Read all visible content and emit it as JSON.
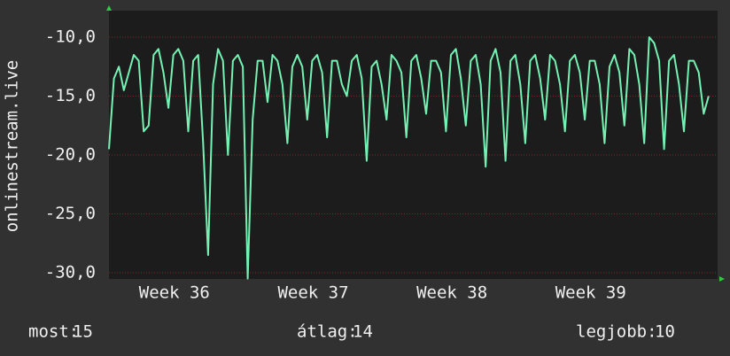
{
  "chart_data": {
    "type": "line",
    "ylabel": "onlinestream.live",
    "ylim": [
      -30.53,
      -7.74
    ],
    "yticks": [
      {
        "value": -30,
        "label": "-30,0"
      },
      {
        "value": -25,
        "label": "-25,0"
      },
      {
        "value": -20,
        "label": "-20,0"
      },
      {
        "value": -15,
        "label": "-15,0"
      },
      {
        "value": -10,
        "label": "-10,0"
      }
    ],
    "xlim": [
      0,
      30.7
    ],
    "xticks": [
      {
        "value": 3.3,
        "label": "Week 36"
      },
      {
        "value": 10.3,
        "label": "Week 37"
      },
      {
        "value": 17.3,
        "label": "Week 38"
      },
      {
        "value": 24.3,
        "label": "Week 39"
      }
    ],
    "grid": true,
    "x": [
      0,
      0.25,
      0.5,
      0.75,
      1,
      1.25,
      1.5,
      1.75,
      2,
      2.25,
      2.5,
      2.75,
      3,
      3.25,
      3.5,
      3.75,
      4,
      4.25,
      4.5,
      4.75,
      5,
      5.25,
      5.5,
      5.75,
      6,
      6.25,
      6.5,
      6.75,
      7,
      7.25,
      7.5,
      7.75,
      8,
      8.25,
      8.5,
      8.75,
      9,
      9.25,
      9.5,
      9.75,
      10,
      10.25,
      10.5,
      10.75,
      11,
      11.25,
      11.5,
      11.75,
      12,
      12.25,
      12.5,
      12.75,
      13,
      13.25,
      13.5,
      13.75,
      14,
      14.25,
      14.5,
      14.75,
      15,
      15.25,
      15.5,
      15.75,
      16,
      16.25,
      16.5,
      16.75,
      17,
      17.25,
      17.5,
      17.75,
      18,
      18.25,
      18.5,
      18.75,
      19,
      19.25,
      19.5,
      19.75,
      20,
      20.25,
      20.5,
      20.75,
      21,
      21.25,
      21.5,
      21.75,
      22,
      22.25,
      22.5,
      22.75,
      23,
      23.25,
      23.5,
      23.75,
      24,
      24.25,
      24.5,
      24.75,
      25,
      25.25,
      25.5,
      25.75,
      26,
      26.25,
      26.5,
      26.75,
      27,
      27.25,
      27.5,
      27.75,
      28,
      28.25,
      28.5,
      28.75,
      29,
      29.25,
      29.5,
      29.75,
      30,
      30.25
    ],
    "series": [
      {
        "name": "onlinestream.live",
        "color": "#74f2b4",
        "values": [
          -19.5,
          -13.5,
          -12.5,
          -14.5,
          -13,
          -11.5,
          -12,
          -18,
          -17.5,
          -11.5,
          -11,
          -13,
          -16,
          -11.5,
          -11,
          -12,
          -18,
          -12,
          -11.5,
          -19,
          -28.5,
          -14,
          -11,
          -12,
          -20,
          -12,
          -11.5,
          -12.5,
          -30.5,
          -17,
          -12,
          -12,
          -15.5,
          -11.5,
          -12,
          -14,
          -19,
          -12.5,
          -11.5,
          -12.5,
          -17,
          -12,
          -11.5,
          -13,
          -18.5,
          -12,
          -12,
          -14,
          -15,
          -12,
          -11.5,
          -13.5,
          -20.5,
          -12.5,
          -12,
          -14,
          -17,
          -11.5,
          -12,
          -13,
          -18.5,
          -12,
          -11.5,
          -13.5,
          -16.5,
          -12,
          -12,
          -13,
          -18,
          -11.5,
          -11,
          -13.5,
          -17.5,
          -12,
          -11.5,
          -14,
          -21,
          -12,
          -11,
          -13,
          -20.5,
          -12,
          -11.5,
          -14,
          -19,
          -12,
          -11.5,
          -13.5,
          -17,
          -11.5,
          -12,
          -14,
          -18,
          -12,
          -11.5,
          -13,
          -17,
          -12,
          -12,
          -14,
          -19,
          -12.5,
          -11.5,
          -13,
          -17.5,
          -11,
          -11.5,
          -14,
          -19,
          -10,
          -10.5,
          -12,
          -19.5,
          -12,
          -11.5,
          -14,
          -18,
          -12,
          -12,
          -13,
          -16.5,
          -15
        ]
      }
    ],
    "footer": [
      {
        "label": "most:",
        "value": 15
      },
      {
        "label": "átlag:",
        "value": 14
      },
      {
        "label": "legjobb:",
        "value": 10
      }
    ]
  }
}
